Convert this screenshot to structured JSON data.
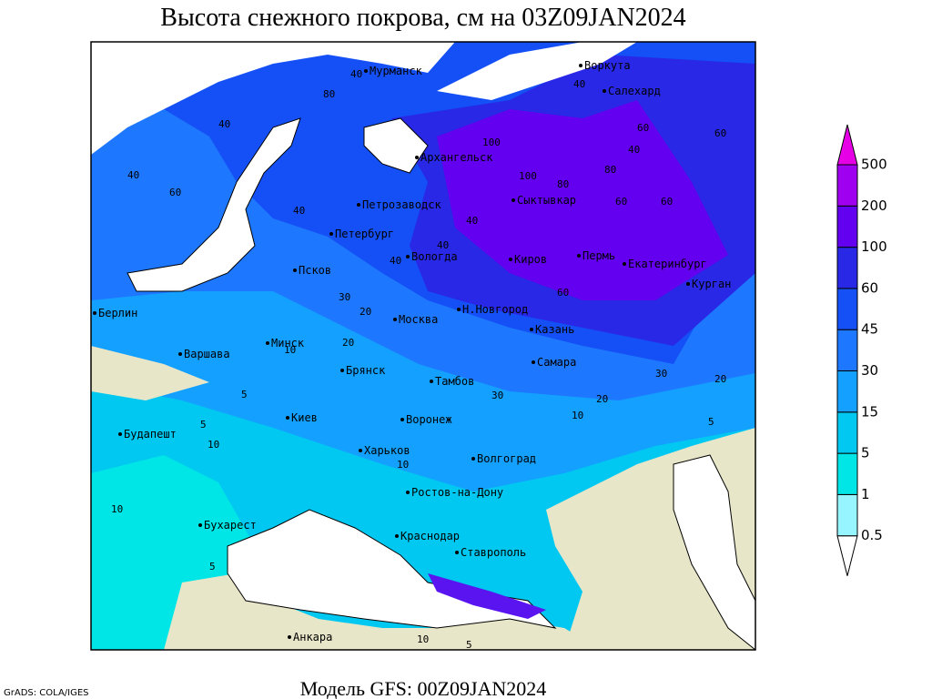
{
  "header": {
    "title": "Высота снежного покрова, см на 03Z09JAN2024"
  },
  "footer": {
    "model": "Модель GFS: 00Z09JAN2024",
    "credit": "GrADS: COLA/IGES"
  },
  "legend": {
    "levels": [
      0.5,
      1,
      5,
      15,
      30,
      45,
      60,
      100,
      200,
      500
    ],
    "colors": [
      "#ffffff",
      "#96f5ff",
      "#00e6e6",
      "#00c8f0",
      "#14a0ff",
      "#1e78ff",
      "#1450f5",
      "#2828e6",
      "#6400f0",
      "#a000f0",
      "#e600e6"
    ]
  },
  "cities": [
    "Мурманск",
    "Воркута",
    "Салехард",
    "Архангельск",
    "Сыктывкар",
    "Петрозаводск",
    "Петербург",
    "Вологда",
    "Киров",
    "Пермь",
    "Екатеринбург",
    "Курган",
    "Псков",
    "Москва",
    "Н.Новгород",
    "Казань",
    "Берлин",
    "Варшава",
    "Минск",
    "Брянск",
    "Тамбов",
    "Самара",
    "Киев",
    "Воронеж",
    "Будапешт",
    "Харьков",
    "Волгоград",
    "Ростов-на-Дону",
    "Бухарест",
    "Краснодар",
    "Ставрополь",
    "Анкара"
  ],
  "contour_labels": [
    40,
    80,
    60,
    100,
    40,
    40,
    40,
    60,
    60,
    40,
    100,
    60,
    80,
    40,
    60,
    40,
    80,
    40,
    40,
    60,
    30,
    20,
    10,
    20,
    30,
    20,
    10,
    5,
    5,
    10,
    10,
    5,
    10,
    5,
    10,
    30,
    20,
    5
  ]
}
